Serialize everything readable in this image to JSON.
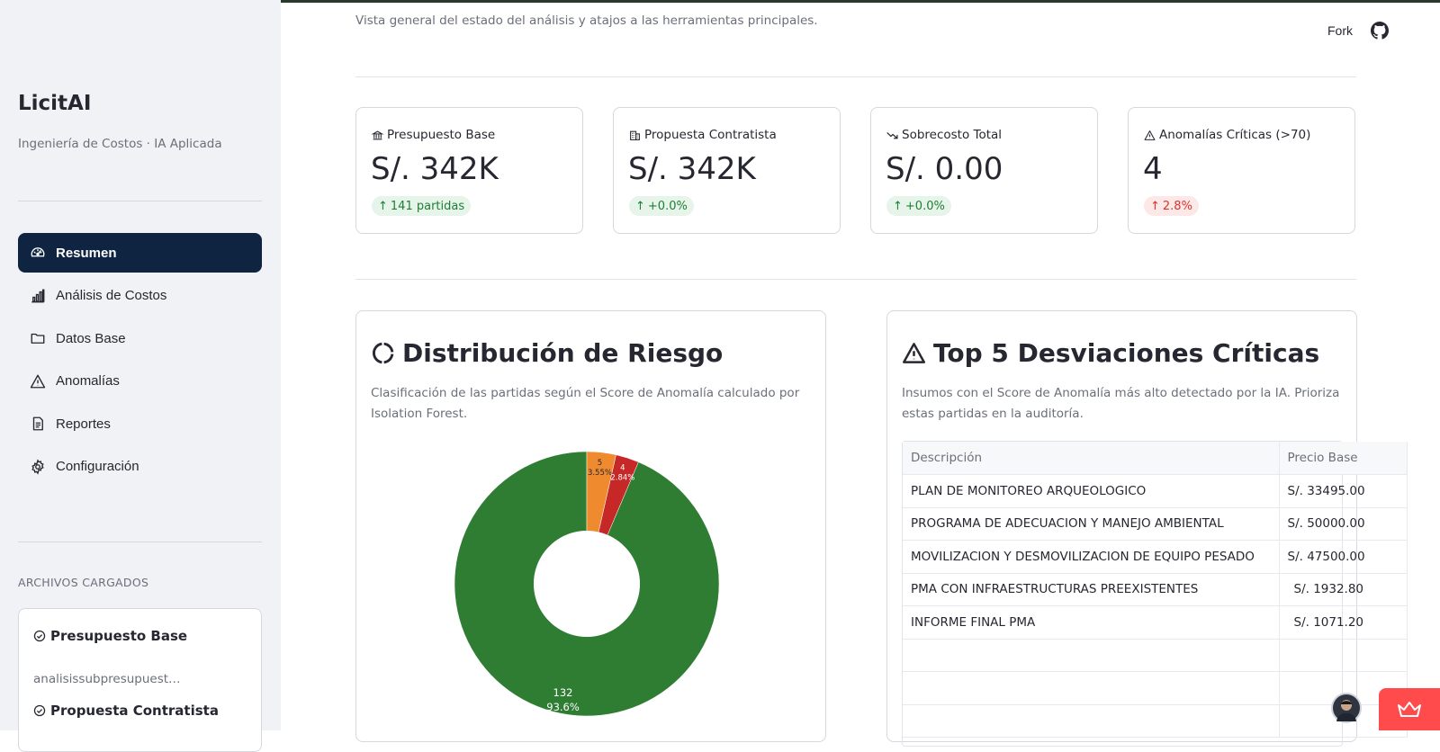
{
  "sidebar": {
    "title": "LicitAI",
    "subtitle": "Ingeniería de Costos · IA Aplicada",
    "nav": [
      {
        "label": "Resumen",
        "icon": "gauge-icon",
        "active": true
      },
      {
        "label": "Análisis de Costos",
        "icon": "bar-chart-icon",
        "active": false
      },
      {
        "label": "Datos Base",
        "icon": "folder-icon",
        "active": false
      },
      {
        "label": "Anomalías",
        "icon": "warning-icon",
        "active": false
      },
      {
        "label": "Reportes",
        "icon": "document-icon",
        "active": false
      },
      {
        "label": "Configuración",
        "icon": "gear-icon",
        "active": false
      }
    ],
    "files_label": "ARCHIVOS CARGADOS",
    "files": [
      {
        "title": "Presupuesto Base",
        "name": "analisissubpresupuest…"
      },
      {
        "title": "Propuesta Contratista",
        "name": ""
      }
    ]
  },
  "header": {
    "subtitle": "Vista general del estado del análisis y atajos a las herramientas principales.",
    "fork_label": "Fork"
  },
  "metrics": [
    {
      "label": "Presupuesto Base",
      "icon": "bank-icon",
      "value": "S/. 342K",
      "delta": "141 partidas",
      "delta_kind": "good"
    },
    {
      "label": "Propuesta Contratista",
      "icon": "building-icon",
      "value": "S/. 342K",
      "delta": "+0.0%",
      "delta_kind": "good"
    },
    {
      "label": "Sobrecosto Total",
      "icon": "trend-down-icon",
      "value": "S/. 0.00",
      "delta": "+0.0%",
      "delta_kind": "good"
    },
    {
      "label": "Anomalías Críticas (>70)",
      "icon": "warning-icon",
      "value": "4",
      "delta": "2.8%",
      "delta_kind": "bad"
    }
  ],
  "risk_card": {
    "title": "Distribución de Riesgo",
    "description": "Clasificación de las partidas según el Score de Anomalía calculado por Isolation Forest."
  },
  "chart_data": {
    "type": "pie",
    "title": "",
    "hole": 0.4,
    "slices": [
      {
        "value": 132,
        "percent": "93.6%",
        "color": "#2e7d32"
      },
      {
        "value": 4,
        "percent": "2.84%",
        "color": "#c62828"
      },
      {
        "value": 5,
        "percent": "3.55%",
        "color": "#ef8a2e"
      }
    ]
  },
  "deviations_card": {
    "title": "Top 5 Desviaciones Críticas",
    "description": "Insumos con el Score de Anomalía más alto detectado por la IA. Prioriza estas partidas en la auditoría.",
    "columns": [
      "Descripción",
      "Precio Base"
    ],
    "rows": [
      {
        "descripcion": "PLAN DE MONITOREO ARQUEOLOGICO",
        "precio": "S/. 33495.00"
      },
      {
        "descripcion": "PROGRAMA DE ADECUACION Y MANEJO AMBIENTAL",
        "precio": "S/. 50000.00"
      },
      {
        "descripcion": "MOVILIZACION Y DESMOVILIZACION DE EQUIPO PESADO",
        "precio": "S/. 47500.00"
      },
      {
        "descripcion": "PMA CON INFRAESTRUCTURAS PREEXISTENTES",
        "precio": "S/. 1932.80"
      },
      {
        "descripcion": "INFORME FINAL PMA",
        "precio": "S/. 1071.20"
      }
    ]
  }
}
